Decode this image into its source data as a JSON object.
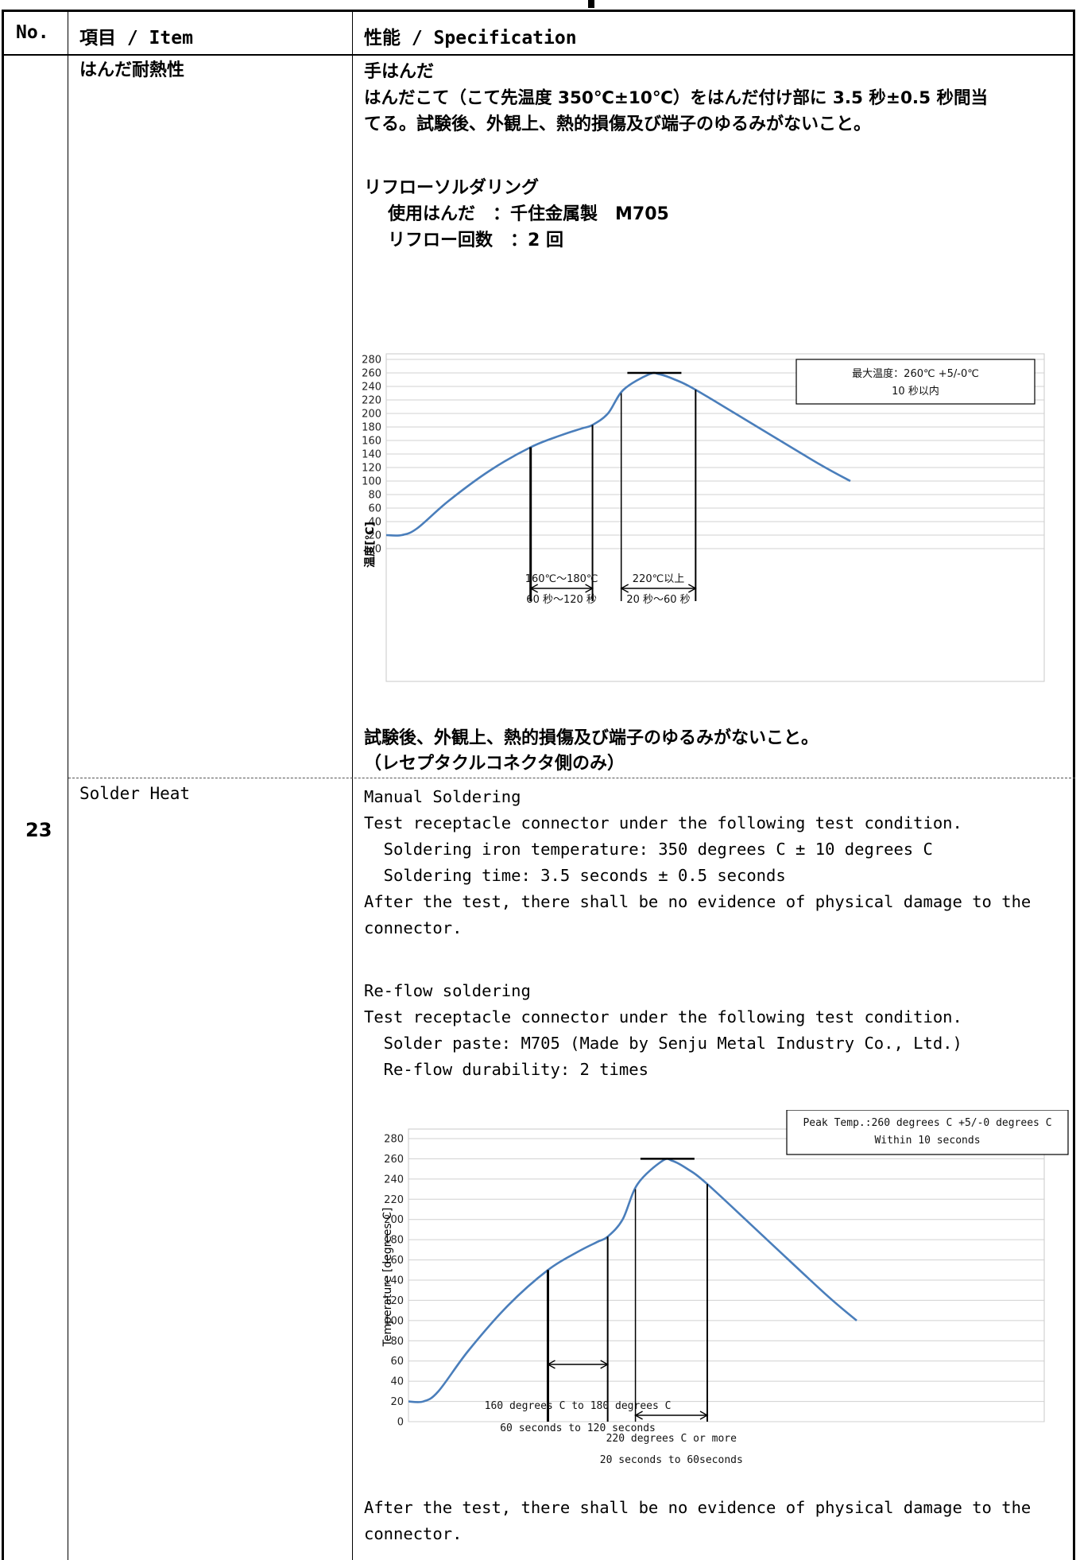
{
  "header": {
    "no": "No.",
    "item": "項目 / Item",
    "spec": "性能 / Specification"
  },
  "row": {
    "number": "23",
    "item_jp": "はんだ耐熱性",
    "item_en": "Solder Heat"
  },
  "jp": {
    "hand_title": "手はんだ",
    "hand_line1": "はんだこて（こて先温度 350℃±10℃）をはんだ付け部に 3.5 秒±0.5 秒間当",
    "hand_line2": "てる。試験後、外観上、熱的損傷及び端子のゆるみがないこと。",
    "reflow_title": "リフローソルダリング",
    "solder_label": "使用はんだ　：千住金属製　M705",
    "reflow_count": "リフロー回数　：2 回",
    "after1": "試験後、外観上、熱的損傷及び端子のゆるみがないこと。",
    "after2": "（レセプタクルコネクタ側のみ）"
  },
  "en": {
    "manual_title": "Manual Soldering",
    "manual_line1": "Test receptacle connector under the following test condition.",
    "manual_line2": "  Soldering iron temperature: 350 degrees C ± 10 degrees C",
    "manual_line3": "  Soldering time: 3.5 seconds ± 0.5 seconds",
    "manual_line4": "After the test, there shall be no evidence of physical damage to the",
    "manual_line5": "connector.",
    "reflow_title": "Re-flow soldering",
    "reflow_line1": "Test receptacle connector under the following test condition.",
    "reflow_line2": "  Solder paste: M705 (Made by Senju Metal Industry Co., Ltd.)",
    "reflow_line3": "  Re-flow durability: 2 times",
    "after1": "After the test, there shall be no evidence of physical damage to the",
    "after2": "connector."
  },
  "chart_data": [
    {
      "type": "line",
      "x": [
        0,
        15,
        30,
        60,
        100,
        140,
        170,
        190,
        200,
        215,
        230,
        255,
        265,
        280,
        300,
        360,
        420,
        450
      ],
      "values": [
        20,
        20,
        30,
        70,
        115,
        150,
        168,
        178,
        183,
        200,
        235,
        258,
        258,
        250,
        235,
        180,
        125,
        100
      ],
      "ylabel": "温度[℃]",
      "ylim": [
        0,
        280
      ],
      "yticks": [
        "0",
        "20",
        "40",
        "60",
        "80",
        "100",
        "120",
        "140",
        "160",
        "180",
        "200",
        "220",
        "240",
        "260",
        "280"
      ],
      "grid": true,
      "annotations": {
        "peak_box_line1": "最大温度：260℃ +5/-0℃",
        "peak_box_line2": "10 秒以内",
        "preheat_temp": "160℃～180℃",
        "preheat_time": "60 秒～120 秒",
        "reflow_temp": "220℃以上",
        "reflow_time": "20 秒～60 秒"
      }
    },
    {
      "type": "line",
      "x": [
        0,
        15,
        30,
        60,
        100,
        140,
        170,
        190,
        200,
        215,
        230,
        255,
        265,
        280,
        300,
        360,
        420,
        450
      ],
      "values": [
        20,
        20,
        30,
        70,
        115,
        150,
        168,
        178,
        183,
        200,
        235,
        258,
        258,
        250,
        235,
        180,
        125,
        100
      ],
      "ylabel": "Temperature [degrees C]",
      "ylim": [
        0,
        280
      ],
      "yticks": [
        "0",
        "20",
        "40",
        "60",
        "80",
        "100",
        "120",
        "140",
        "160",
        "180",
        "200",
        "220",
        "240",
        "260",
        "280"
      ],
      "grid": true,
      "annotations": {
        "peak_box_line1": "Peak Temp.:260 degrees C +5/-0 degrees C",
        "peak_box_line2": "Within 10 seconds",
        "preheat_temp": "160 degrees C to 180 degrees C",
        "preheat_time": "60 seconds to 120 seconds",
        "reflow_temp": "220 degrees C or more",
        "reflow_time": "20 seconds to 60seconds"
      }
    }
  ]
}
